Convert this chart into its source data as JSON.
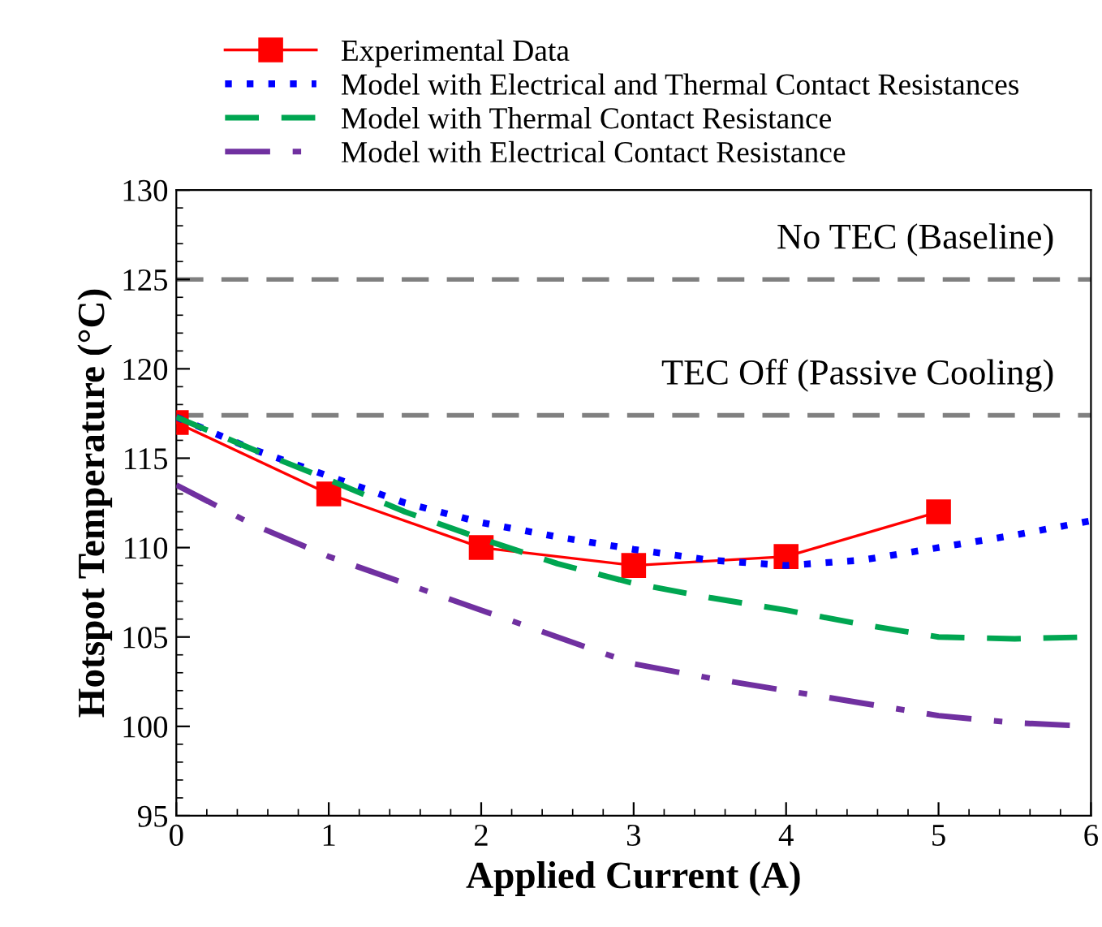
{
  "chart_data": {
    "type": "line",
    "xlabel": "Applied Current (A)",
    "ylabel": "Hotspot Temperature (°C)",
    "xlim": [
      0,
      6
    ],
    "ylim": [
      95,
      130
    ],
    "xticks": [
      0,
      1,
      2,
      3,
      4,
      5,
      6
    ],
    "yticks": [
      95,
      100,
      105,
      110,
      115,
      120,
      125,
      130
    ],
    "grid": false,
    "legend": "top",
    "series": [
      {
        "name": "Experimental Data",
        "color": "#ff0000",
        "marker": "square",
        "line_style": "solid",
        "x": [
          0,
          1,
          2,
          3,
          4,
          5
        ],
        "values": [
          117,
          113,
          110,
          109,
          109.5,
          112
        ]
      },
      {
        "name": "Model with Electrical and Thermal Contact Resistances",
        "color": "#0000ff",
        "marker": "none",
        "line_style": "dotted",
        "x": [
          0,
          0.5,
          1,
          1.5,
          2,
          2.5,
          3,
          3.5,
          4,
          4.5,
          5,
          5.5,
          6
        ],
        "values": [
          117.3,
          115.5,
          114,
          112.5,
          111.4,
          110.6,
          109.9,
          109.3,
          109.0,
          109.3,
          110.0,
          110.7,
          111.5
        ]
      },
      {
        "name": "Model with Thermal Contact Resistance",
        "color": "#00a651",
        "marker": "none",
        "line_style": "dashed",
        "x": [
          0,
          0.5,
          1,
          1.5,
          2,
          2.5,
          3,
          3.5,
          4,
          4.5,
          5,
          5.5,
          6
        ],
        "values": [
          117.3,
          115.5,
          113.8,
          112.0,
          110.5,
          109.1,
          108.0,
          107.2,
          106.5,
          105.7,
          105.0,
          104.9,
          105.0
        ]
      },
      {
        "name": "Model with Electrical Contact Resistance",
        "color": "#7030a0",
        "marker": "none",
        "line_style": "dashdot",
        "x": [
          0,
          0.5,
          1,
          1.5,
          2,
          2.5,
          3,
          3.5,
          4,
          4.5,
          5,
          5.5,
          6
        ],
        "values": [
          113.5,
          111.3,
          109.5,
          108,
          106.5,
          105,
          103.5,
          102.7,
          102,
          101.3,
          100.6,
          100.2,
          100.0
        ]
      }
    ],
    "ref_lines": [
      {
        "axis": "y",
        "value": 125,
        "label": "No TEC (Baseline)",
        "color": "#808080",
        "line_style": "dashed"
      },
      {
        "axis": "y",
        "value": 117.4,
        "label": "TEC Off (Passive Cooling)",
        "color": "#808080",
        "line_style": "dashed"
      }
    ]
  }
}
